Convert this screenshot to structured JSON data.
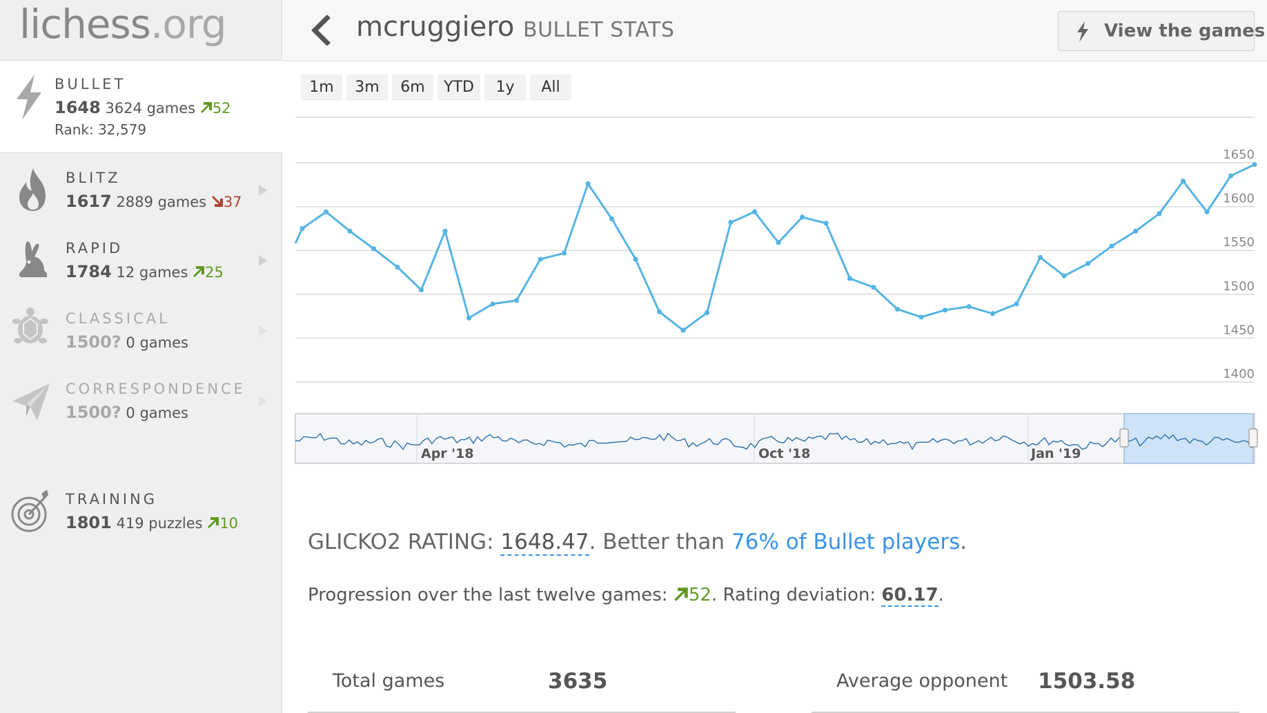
{
  "site": {
    "logo_name": "lichess",
    "logo_tld": ".org"
  },
  "sidebar": {
    "perfs": [
      {
        "key": "bullet",
        "name": "BULLET",
        "rating": "1648",
        "games": "3624 games",
        "progress": "52",
        "trend": "up",
        "rank": "Rank: 32,579",
        "icon": "lightning-icon"
      },
      {
        "key": "blitz",
        "name": "BLITZ",
        "rating": "1617",
        "games": "2889 games",
        "progress": "37",
        "trend": "down",
        "icon": "fire-icon"
      },
      {
        "key": "rapid",
        "name": "RAPID",
        "rating": "1784",
        "games": "12 games",
        "progress": "25",
        "trend": "up",
        "icon": "rabbit-icon"
      },
      {
        "key": "classical",
        "name": "CLASSICAL",
        "rating": "1500?",
        "games": "0 games",
        "icon": "turtle-icon"
      },
      {
        "key": "correspondence",
        "name": "CORRESPONDENCE",
        "rating": "1500?",
        "games": "0 games",
        "icon": "paper-plane-icon"
      },
      {
        "key": "training",
        "name": "TRAINING",
        "rating": "1801",
        "games": "419 puzzles",
        "progress": "10",
        "trend": "up",
        "icon": "target-icon"
      }
    ]
  },
  "header": {
    "username": "mcruggiero",
    "subtitle": "BULLET STATS",
    "view_games_label": "View the games"
  },
  "ranges": [
    "1m",
    "3m",
    "6m",
    "YTD",
    "1y",
    "All"
  ],
  "chart_data": {
    "type": "line",
    "y_ticks": [
      1650,
      1600,
      1550,
      1500,
      1450,
      1400
    ],
    "ylim": [
      1400,
      1650
    ],
    "values": [
      1575,
      1594,
      1572,
      1552,
      1531,
      1505,
      1572,
      1473,
      1489,
      1493,
      1540,
      1547,
      1626,
      1586,
      1540,
      1480,
      1459,
      1479,
      1582,
      1594,
      1559,
      1588,
      1581,
      1518,
      1508,
      1483,
      1474,
      1482,
      1486,
      1478,
      1489,
      1542,
      1521,
      1535,
      1555,
      1572,
      1592,
      1629,
      1594,
      1635,
      1648
    ],
    "navigator_labels": [
      "Apr '18",
      "Oct '18",
      "Jan '19"
    ],
    "line_color": "#56b4e3",
    "navigator_selection_color": "#cfe3f8"
  },
  "stats": {
    "glicko_label": "GLICKO2 RATING: ",
    "glicko_value": "1648.47",
    "glicko_mid": ". Better than ",
    "better_pct": "76%",
    "better_rest": " of Bullet players",
    "glicko_end": ".",
    "progression_label": "Progression over the last twelve games: ",
    "progression_value": "52",
    "rd_label": ". Rating deviation: ",
    "rd_value": "60.17",
    "rd_end": ".",
    "total_games_label": "Total games",
    "total_games_value": "3635",
    "avg_opponent_label": "Average opponent",
    "avg_opponent_value": "1503.58"
  },
  "colors": {
    "up": "#629924",
    "down": "#b04030",
    "link": "#3893e8"
  }
}
